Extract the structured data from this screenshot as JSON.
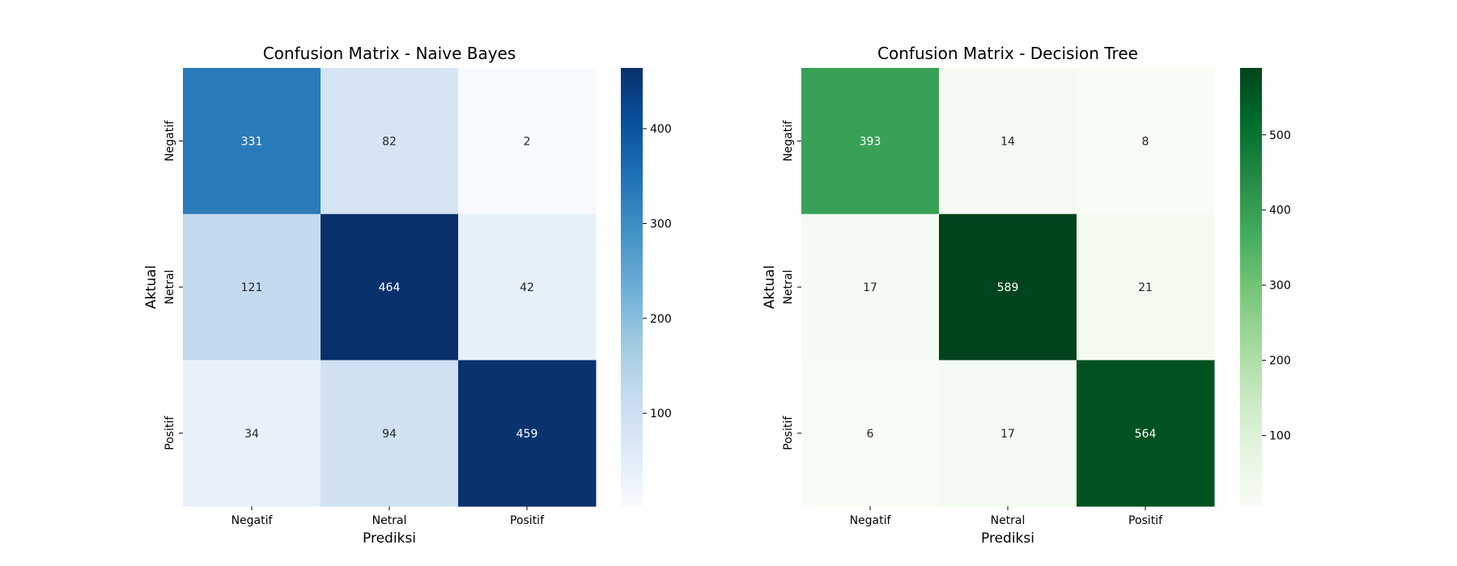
{
  "chart_data": [
    {
      "type": "heatmap",
      "title": "Confusion Matrix - Naive Bayes",
      "xlabel": "Prediksi",
      "ylabel": "Aktual",
      "x_categories": [
        "Negatif",
        "Netral",
        "Positif"
      ],
      "y_categories": [
        "Negatif",
        "Netral",
        "Positif"
      ],
      "values": [
        [
          331,
          82,
          2
        ],
        [
          121,
          464,
          42
        ],
        [
          34,
          94,
          459
        ]
      ],
      "colormap": "Blues",
      "color_low": "#f7fbff",
      "color_high": "#08306b",
      "color_range": [
        2,
        464
      ],
      "colorbar_ticks": [
        100,
        200,
        300,
        400
      ],
      "annotations": true
    },
    {
      "type": "heatmap",
      "title": "Confusion Matrix - Decision Tree",
      "xlabel": "Prediksi",
      "ylabel": "Aktual",
      "x_categories": [
        "Negatif",
        "Netral",
        "Positif"
      ],
      "y_categories": [
        "Negatif",
        "Netral",
        "Positif"
      ],
      "values": [
        [
          393,
          14,
          8
        ],
        [
          17,
          589,
          21
        ],
        [
          6,
          17,
          564
        ]
      ],
      "colormap": "Greens",
      "color_low": "#f7fcf5",
      "color_high": "#00441b",
      "color_range": [
        6,
        589
      ],
      "colorbar_ticks": [
        100,
        200,
        300,
        400,
        500
      ],
      "annotations": true
    }
  ]
}
